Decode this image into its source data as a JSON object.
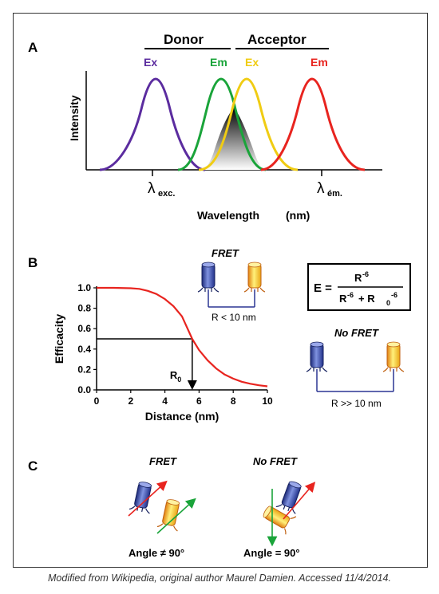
{
  "panel_a": {
    "label": "A",
    "donor_label": "Donor",
    "acceptor_label": "Acceptor",
    "peaks": [
      {
        "label": "Ex",
        "color": "#5b2c9f"
      },
      {
        "label": "Em",
        "color": "#1aa43a"
      },
      {
        "label": "Ex",
        "color": "#f0cc13"
      },
      {
        "label": "Em",
        "color": "#e8241f"
      }
    ],
    "ylabel": "Intensity",
    "xlabel": "Wavelength",
    "xunit": "(nm)",
    "lambda_symbol": "λ",
    "lambda_exc_sub": "exc.",
    "lambda_em_sub": "ém."
  },
  "panel_b": {
    "label": "B",
    "fret_title": "FRET",
    "fret_distance": "R < 10 nm",
    "nofret_title": "No FRET",
    "nofret_distance": "R >> 10 nm",
    "formula": {
      "lhs": "E =",
      "numerator": "R",
      "numerator_exp": "-6",
      "den_base": "R",
      "den_base_exp": "-6",
      "den_plus": "+ R",
      "den_sub": "0",
      "den_exp": "-6"
    },
    "r0_label": "R",
    "r0_sub": "0",
    "colors": {
      "donor": "#3a4fb0",
      "acceptor": "#f2c21b",
      "curve": "#e8241f",
      "link": "#2b3593"
    }
  },
  "chart_data": {
    "type": "line",
    "title": "",
    "xlabel": "Distance  (nm)",
    "ylabel": "Efficacity",
    "xlim": [
      0,
      10
    ],
    "ylim": [
      0,
      1.0
    ],
    "xticks": [
      "0",
      "2",
      "4",
      "6",
      "8",
      "10"
    ],
    "yticks": [
      "0.0",
      "0.2",
      "0.4",
      "0.6",
      "0.8",
      "1.0"
    ],
    "r0": 5.6,
    "series": [
      {
        "color": "#e8241f",
        "x": [
          0,
          1,
          2,
          2.5,
          3,
          3.5,
          4,
          4.5,
          5,
          5.6,
          6,
          6.5,
          7,
          7.5,
          8,
          8.5,
          9,
          9.5,
          10
        ],
        "y": [
          1.0,
          1.0,
          0.996,
          0.99,
          0.97,
          0.94,
          0.89,
          0.82,
          0.72,
          0.5,
          0.39,
          0.29,
          0.21,
          0.15,
          0.11,
          0.08,
          0.06,
          0.045,
          0.035
        ]
      }
    ]
  },
  "panel_c": {
    "label": "C",
    "fret_title": "FRET",
    "nofret_title": "No FRET",
    "fret_angle": "Angle ≠ 90°",
    "nofret_angle": "Angle = 90°"
  },
  "caption": "Modified from Wikipedia, original author Maurel Damien. Accessed 11/4/2014."
}
